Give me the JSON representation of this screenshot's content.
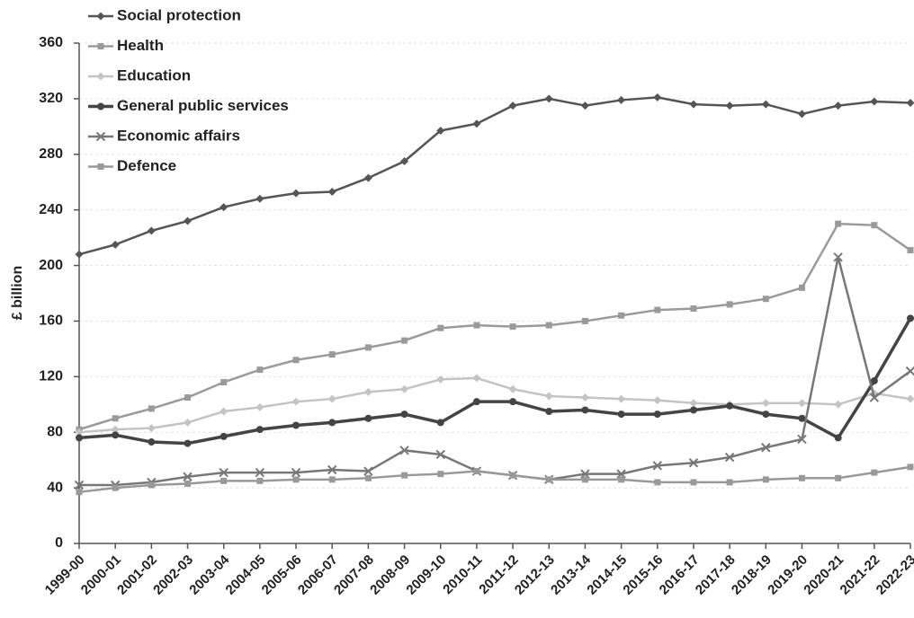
{
  "chart_data": {
    "type": "line",
    "y_label": "£ billion",
    "categories": [
      "1999-00",
      "2000-01",
      "2001-02",
      "2002-03",
      "2003-04",
      "2004-05",
      "2005-06",
      "2006-07",
      "2007-08",
      "2008-09",
      "2009-10",
      "2010-11",
      "2011-12",
      "2012-13",
      "2013-14",
      "2014-15",
      "2015-16",
      "2016-17",
      "2017-18",
      "2018-19",
      "2019-20",
      "2020-21",
      "2021-22",
      "2022-23"
    ],
    "series": [
      {
        "name": "Social protection",
        "color": "#555555",
        "marker": "diamond",
        "values": [
          208,
          215,
          225,
          232,
          242,
          248,
          252,
          253,
          263,
          275,
          297,
          302,
          315,
          320,
          315,
          319,
          321,
          316,
          315,
          316,
          309,
          315,
          318,
          317
        ]
      },
      {
        "name": "Health",
        "color": "#9a9a9a",
        "marker": "square",
        "values": [
          82,
          90,
          97,
          105,
          116,
          125,
          132,
          136,
          141,
          146,
          155,
          157,
          156,
          157,
          160,
          164,
          168,
          169,
          172,
          176,
          184,
          230,
          229,
          211
        ]
      },
      {
        "name": "Education",
        "color": "#c4c4c4",
        "marker": "diamond",
        "values": [
          80,
          82,
          83,
          87,
          95,
          98,
          102,
          104,
          109,
          111,
          118,
          119,
          111,
          106,
          105,
          104,
          103,
          101,
          100,
          101,
          101,
          100,
          108,
          104
        ]
      },
      {
        "name": "General public services",
        "color": "#444444",
        "marker": "circle",
        "values": [
          76,
          78,
          73,
          72,
          77,
          82,
          85,
          87,
          90,
          93,
          87,
          102,
          102,
          95,
          96,
          93,
          93,
          96,
          99,
          93,
          90,
          76,
          117,
          162
        ]
      },
      {
        "name": "Economic affairs",
        "color": "#777777",
        "marker": "x",
        "values": [
          42,
          42,
          44,
          48,
          51,
          51,
          51,
          53,
          52,
          67,
          64,
          52,
          49,
          46,
          50,
          50,
          56,
          58,
          62,
          69,
          75,
          206,
          105,
          124
        ]
      },
      {
        "name": "Defence",
        "color": "#999999",
        "marker": "square",
        "values": [
          37,
          40,
          42,
          43,
          45,
          45,
          46,
          46,
          47,
          49,
          50,
          52,
          49,
          46,
          46,
          46,
          44,
          44,
          44,
          46,
          47,
          47,
          51,
          55
        ]
      }
    ],
    "ylim": [
      0,
      360
    ],
    "yticks": [
      0,
      40,
      80,
      120,
      160,
      200,
      240,
      280,
      320,
      360
    ],
    "grid": true
  }
}
